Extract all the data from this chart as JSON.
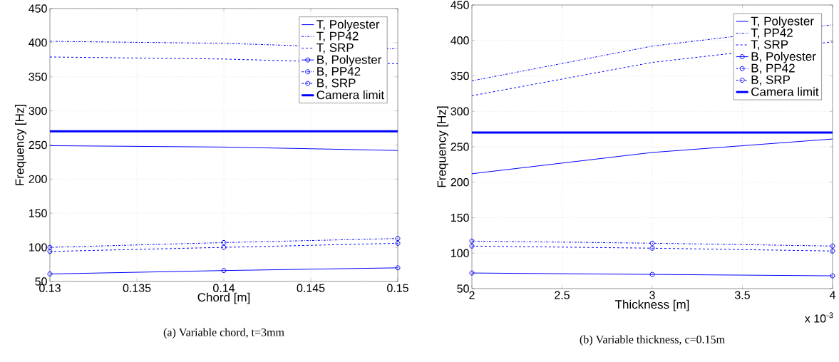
{
  "chart_data": [
    {
      "type": "line",
      "title": "(a) Variable chord, t=3mm",
      "xlabel": "Chord [m]",
      "ylabel": "Frequency [Hz]",
      "x": [
        0.13,
        0.14,
        0.15
      ],
      "xlim": [
        0.13,
        0.15
      ],
      "xticks": [
        0.13,
        0.135,
        0.14,
        0.145,
        0.15
      ],
      "ylim": [
        50,
        450
      ],
      "yticks": [
        50,
        100,
        150,
        200,
        250,
        300,
        350,
        400,
        450
      ],
      "grid": true,
      "legend": "top right",
      "series": [
        {
          "name": "T, Polyester",
          "color": "#0000ff",
          "values": [
            249,
            247,
            242
          ],
          "marker": "none",
          "line_style": "solid"
        },
        {
          "name": "T, PP42",
          "color": "#0000ff",
          "values": [
            402,
            399,
            391
          ],
          "marker": "none",
          "line_style": "dashdot"
        },
        {
          "name": "T, SRP",
          "color": "#0000ff",
          "values": [
            379,
            376,
            369
          ],
          "marker": "none",
          "line_style": "dashed"
        },
        {
          "name": "B, Polyester",
          "color": "#0000ff",
          "values": [
            61,
            66,
            70
          ],
          "marker": "circle",
          "line_style": "solid"
        },
        {
          "name": "B, PP42",
          "color": "#0000ff",
          "values": [
            100,
            107,
            113
          ],
          "marker": "circle",
          "line_style": "dashdot"
        },
        {
          "name": "B, SRP",
          "color": "#0000ff",
          "values": [
            94,
            100,
            106
          ],
          "marker": "circle",
          "line_style": "dashed"
        }
      ],
      "ref_lines": [
        {
          "axis": "y",
          "value": 270,
          "label": "Camera limit",
          "color": "#0000ff"
        }
      ]
    },
    {
      "type": "line",
      "title": "(b) Variable thickness, c=0.15m",
      "xlabel": "Thickness [m]",
      "ylabel": "Frequency [Hz]",
      "x": [
        2,
        3,
        4
      ],
      "xlim": [
        2,
        4
      ],
      "xticks": [
        2,
        2.5,
        3,
        3.5,
        4
      ],
      "ylim": [
        50,
        450
      ],
      "yticks": [
        50,
        100,
        150,
        200,
        250,
        300,
        350,
        400,
        450
      ],
      "grid": true,
      "legend": "top right",
      "annotations": [
        "x 10$^{-3}$"
      ],
      "series": [
        {
          "name": "T, Polyester",
          "color": "#0000ff",
          "values": [
            212,
            242,
            261
          ],
          "marker": "none",
          "line_style": "solid"
        },
        {
          "name": "T, PP42",
          "color": "#0000ff",
          "values": [
            343,
            392,
            422
          ],
          "marker": "none",
          "line_style": "dashdot"
        },
        {
          "name": "T, SRP",
          "color": "#0000ff",
          "values": [
            322,
            369,
            398
          ],
          "marker": "none",
          "line_style": "dashed"
        },
        {
          "name": "B, Polyester",
          "color": "#0000ff",
          "values": [
            72,
            70,
            68
          ],
          "marker": "circle",
          "line_style": "solid"
        },
        {
          "name": "B, PP42",
          "color": "#0000ff",
          "values": [
            117,
            114,
            110
          ],
          "marker": "circle",
          "line_style": "dashdot"
        },
        {
          "name": "B, SRP",
          "color": "#0000ff",
          "values": [
            110,
            107,
            103
          ],
          "marker": "circle",
          "line_style": "dashed"
        }
      ],
      "ref_lines": [
        {
          "axis": "y",
          "value": 270,
          "label": "Camera limit",
          "color": "#0000ff"
        }
      ]
    }
  ]
}
